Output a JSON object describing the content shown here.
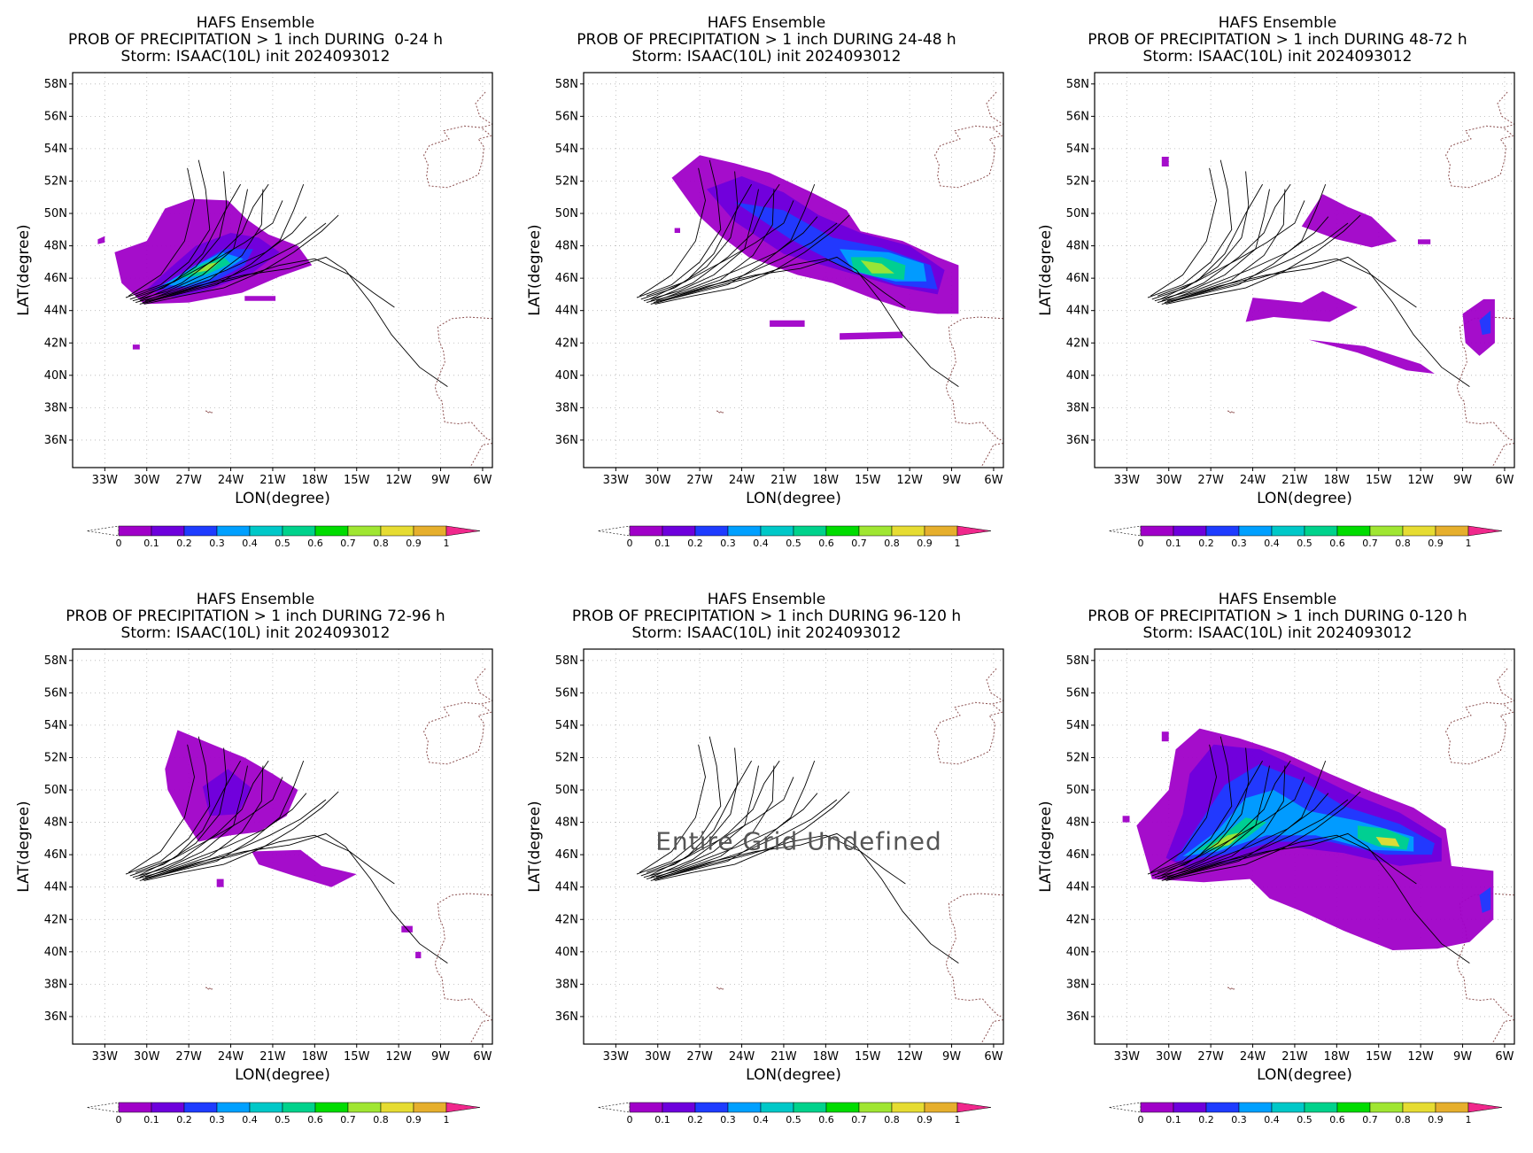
{
  "common": {
    "title_line1": "HAFS Ensemble",
    "title_line3": "Storm: ISAAC(10L) init 2024093012",
    "xlabel": "LON(degree)",
    "ylabel": "LAT(degree)",
    "lat_ticks": [
      "58N",
      "56N",
      "54N",
      "52N",
      "50N",
      "48N",
      "46N",
      "44N",
      "42N",
      "40N",
      "38N",
      "36N"
    ],
    "lon_ticks": [
      "33W",
      "30W",
      "27W",
      "24W",
      "21W",
      "18W",
      "15W",
      "12W",
      "9W",
      "6W"
    ],
    "colorbar": {
      "levels": [
        "0",
        "0.1",
        "0.2",
        "0.3",
        "0.4",
        "0.5",
        "0.6",
        "0.7",
        "0.8",
        "0.9",
        "1"
      ],
      "colors": [
        "#a000c8",
        "#6e00dc",
        "#1e3cff",
        "#00a0ff",
        "#00c8c8",
        "#00d28c",
        "#00dc00",
        "#a0e632",
        "#e6dc32",
        "#e6af2d",
        "#f08228",
        "#fa3c3c"
      ],
      "over_color": "#f0288c"
    }
  },
  "panels": [
    {
      "title_line2": "PROB OF PRECIPITATION > 1 inch DURING  0-24 h",
      "undefined_text": ""
    },
    {
      "title_line2": "PROB OF PRECIPITATION > 1 inch DURING 24-48 h",
      "undefined_text": ""
    },
    {
      "title_line2": "PROB OF PRECIPITATION > 1 inch DURING 48-72 h",
      "undefined_text": ""
    },
    {
      "title_line2": "PROB OF PRECIPITATION > 1 inch DURING 72-96 h",
      "undefined_text": ""
    },
    {
      "title_line2": "PROB OF PRECIPITATION > 1 inch DURING 96-120 h",
      "undefined_text": "Entire Grid Undefined"
    },
    {
      "title_line2": "PROB OF PRECIPITATION > 1 inch DURING 0-120 h",
      "undefined_text": ""
    }
  ]
}
